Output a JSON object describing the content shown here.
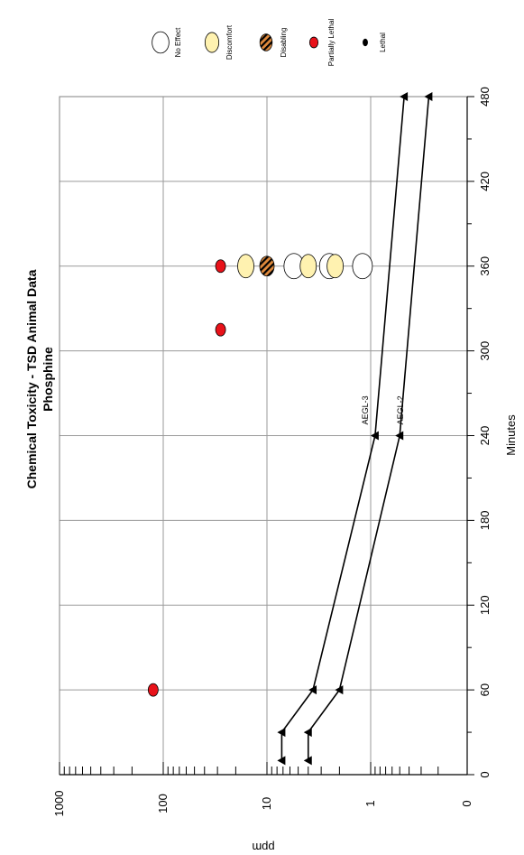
{
  "chart_data": {
    "type": "scatter",
    "title": "Chemical Toxicity - TSD Animal Data",
    "subtitle": "Phosphine",
    "xlabel": "Minutes",
    "ylabel": "ppm",
    "xlim": [
      0,
      480
    ],
    "ylim": [
      0,
      1000
    ],
    "y_scale": "log",
    "grid": true,
    "legend_position": "top",
    "x_ticks": [
      0,
      60,
      120,
      180,
      240,
      300,
      360,
      420,
      480
    ],
    "x_tick_labels": [
      "0",
      "60",
      "120",
      "180",
      "240",
      "300",
      "360",
      "420",
      "480"
    ],
    "y_ticks": [
      0,
      1,
      10,
      100,
      1000
    ],
    "y_tick_labels": [
      "0",
      "1",
      "10",
      "100",
      "1000"
    ],
    "legend": [
      {
        "key": "no_effect",
        "label": "No Effect",
        "color": "#ffffff"
      },
      {
        "key": "discomfort",
        "label": "Discomfort",
        "color": "#fff2b0"
      },
      {
        "key": "disabling",
        "label": "Disabling",
        "color": "#e08a3c"
      },
      {
        "key": "partially_lethal",
        "label": "Partially Lethal",
        "color": "#e8121a"
      },
      {
        "key": "lethal",
        "label": "Lethal",
        "color": "#000000"
      }
    ],
    "points": [
      {
        "x": 60,
        "y": 125,
        "category": "partially_lethal"
      },
      {
        "x": 315,
        "y": 28,
        "category": "partially_lethal"
      },
      {
        "x": 360,
        "y": 28,
        "category": "partially_lethal"
      },
      {
        "x": 360,
        "y": 16,
        "category": "discomfort"
      },
      {
        "x": 360,
        "y": 10,
        "category": "disabling"
      },
      {
        "x": 360,
        "y": 5.5,
        "category": "no_effect"
      },
      {
        "x": 360,
        "y": 4,
        "category": "discomfort"
      },
      {
        "x": 360,
        "y": 2.5,
        "category": "no_effect"
      },
      {
        "x": 360,
        "y": 2.2,
        "category": "discomfort"
      },
      {
        "x": 360,
        "y": 1.2,
        "category": "no_effect"
      }
    ],
    "series": [
      {
        "name": "AEGL-3",
        "x": [
          10,
          30,
          60,
          240,
          480
        ],
        "y": [
          7.2,
          7.2,
          3.6,
          0.9,
          0.45
        ]
      },
      {
        "name": "AEGL-2",
        "x": [
          10,
          30,
          60,
          240,
          480
        ],
        "y": [
          4.0,
          4.0,
          2.0,
          0.5,
          0.25
        ]
      }
    ]
  }
}
